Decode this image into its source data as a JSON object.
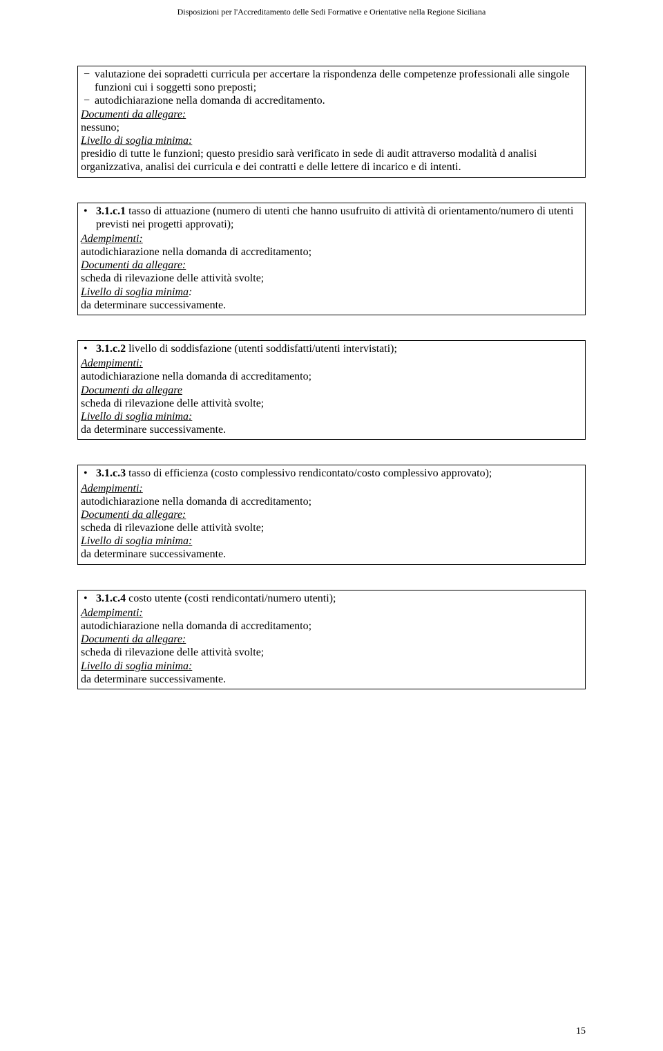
{
  "header": "Disposizioni per l'Accreditamento delle Sedi Formative e Orientative nella Regione Siciliana",
  "box1": {
    "dash1": "valutazione dei sopradetti curricula per accertare la rispondenza delle competenze professionali alle singole funzioni cui i soggetti sono preposti;",
    "dash2": "autodichiarazione nella domanda di accreditamento.",
    "docLabel": "Documenti da allegare:",
    "docText": "nessuno;",
    "livLabel": "Livello di soglia minima:",
    "livText": " presidio di tutte le funzioni; questo presidio sarà verificato in sede di audit attraverso modalità d analisi organizzativa, analisi dei curricula e dei contratti e delle lettere di incarico e di intenti."
  },
  "box2": {
    "bulletNum": "3.1.c.1",
    "bulletText": " tasso di attuazione (numero di utenti che hanno usufruito di attività di orientamento/numero di utenti previsti nei progetti approvati);",
    "adempLabel": "Adempimenti:",
    "adempText": "autodichiarazione nella domanda di accreditamento;",
    "docLabel": "Documenti da allegare:",
    "docText": "scheda di rilevazione delle attività svolte;",
    "livLabel": "Livello di soglia minima",
    "livColon": ":",
    "livText": "da determinare successivamente."
  },
  "box3": {
    "bulletNum": "3.1.c.2",
    "bulletText": " livello di soddisfazione (utenti soddisfatti/utenti intervistati);",
    "adempLabel": "Adempimenti:",
    "adempText": "autodichiarazione nella domanda di accreditamento;",
    "docLabel": "Documenti da allegare",
    "docText": "scheda di rilevazione delle attività svolte;",
    "livLabel": "Livello di soglia minima:",
    "livText": "da determinare successivamente."
  },
  "box4": {
    "bulletNum": "3.1.c.3",
    "bulletText": " tasso di efficienza (costo complessivo rendicontato/costo complessivo approvato);",
    "adempLabel": "Adempimenti:",
    "adempText": " autodichiarazione nella domanda di accreditamento;",
    "docLabel": "Documenti da allegare:",
    "docText": "scheda di rilevazione delle attività svolte;",
    "livLabel": "Livello di soglia minima:",
    "livText": "da determinare successivamente."
  },
  "box5": {
    "bulletNum": "3.1.c.4",
    "bulletText": " costo utente (costi rendicontati/numero utenti);",
    "adempLabel": "Adempimenti:",
    "adempText": " autodichiarazione nella domanda di accreditamento;",
    "docLabel": "Documenti da allegare:",
    "docText": "scheda di rilevazione delle attività svolte;",
    "livLabel": "Livello di soglia minima:",
    "livText": "da determinare successivamente."
  },
  "pageNumber": "15"
}
